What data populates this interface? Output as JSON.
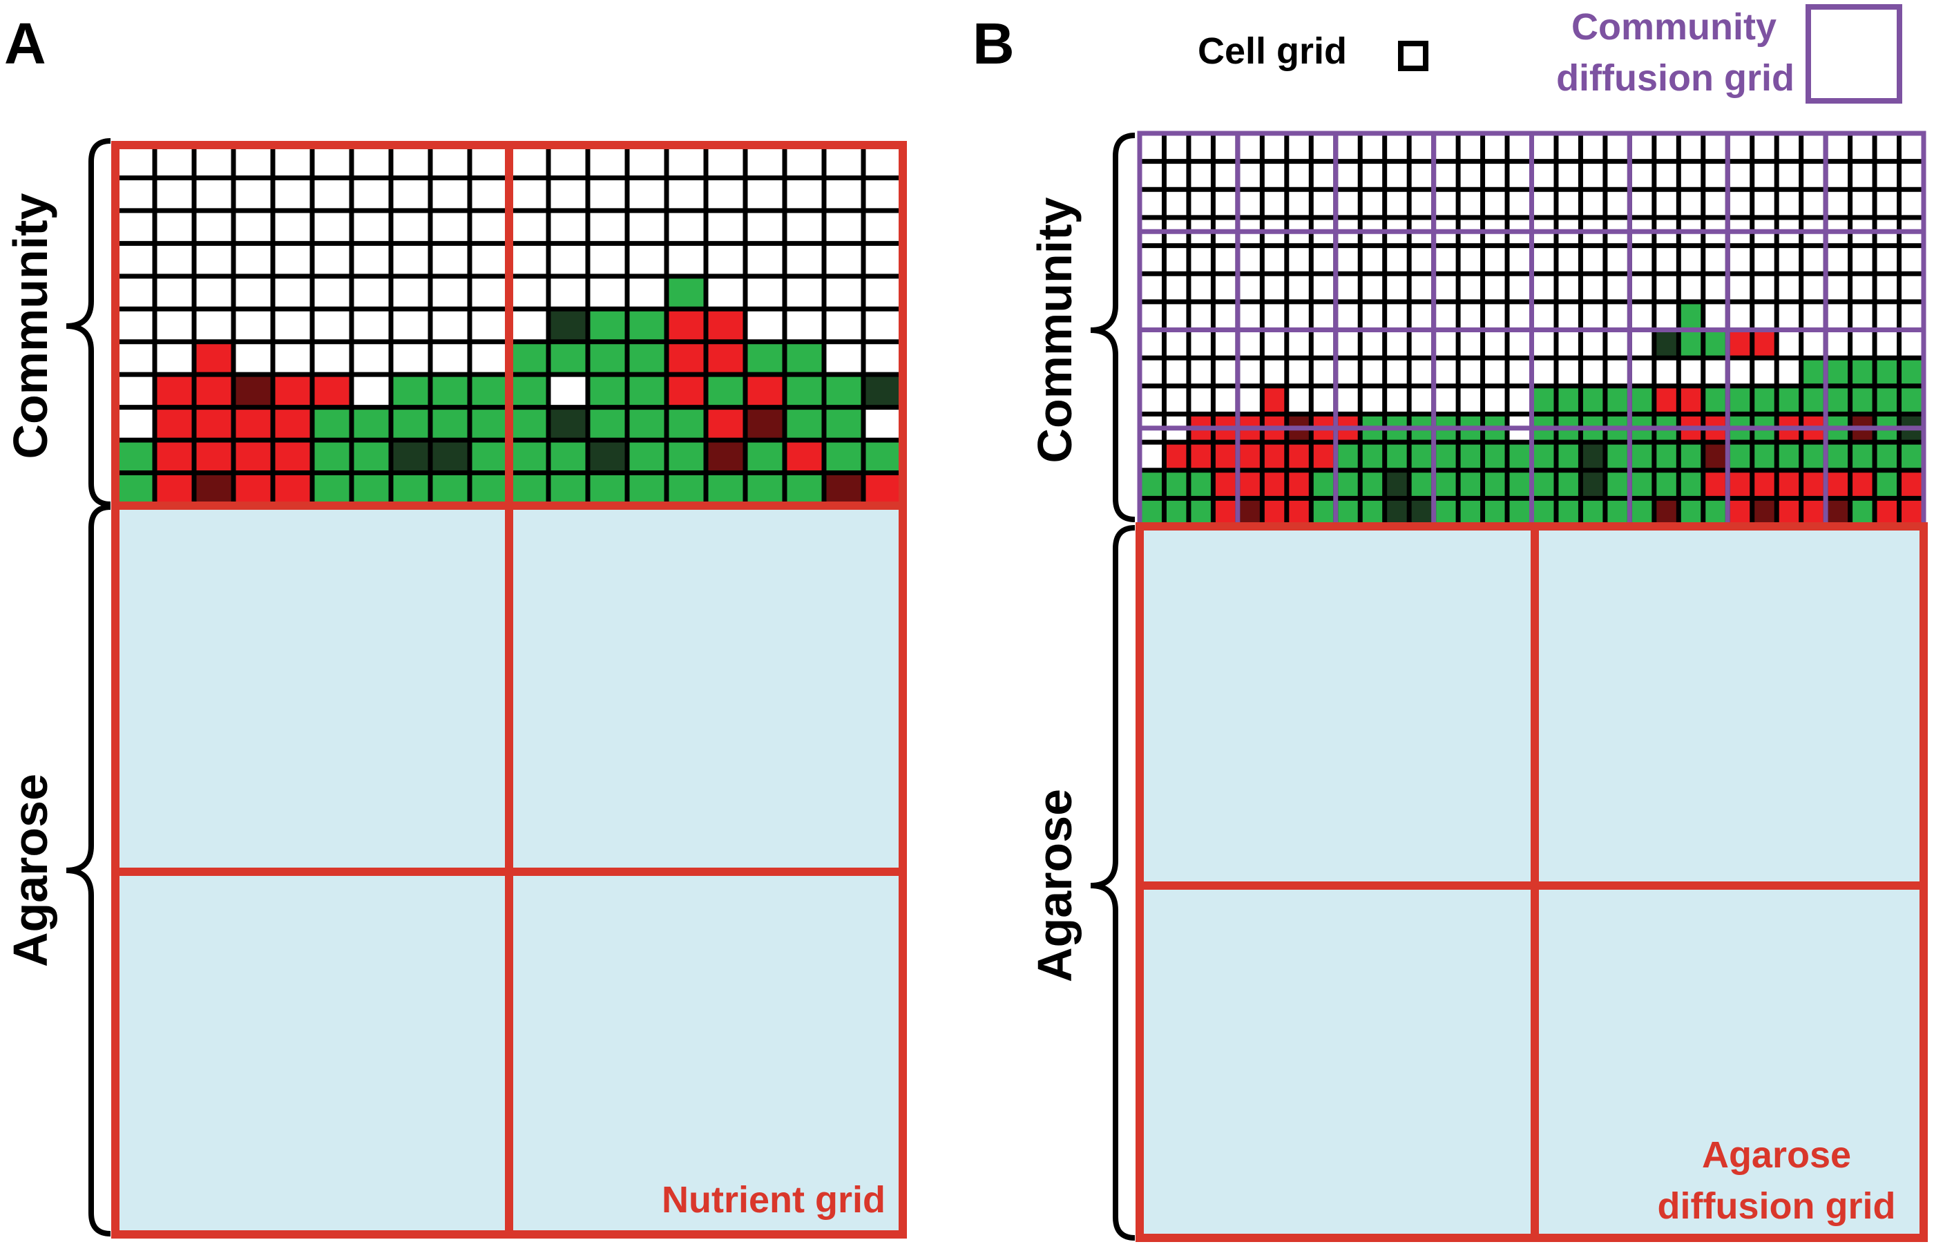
{
  "colors": {
    "cell_grid_line": "#000000",
    "nutrient_grid": "#d9372b",
    "community_diffusion_grid": "#7d52a1",
    "agarose_fill": "#d3ebf2",
    "green_cell": "#2db34b",
    "red_cell": "#ec2024",
    "dark_green_cell": "#1b3a20",
    "dark_red_cell": "#6b1010",
    "empty_cell": "#ffffff"
  },
  "panel_a": {
    "label": "A",
    "community_label": "Community",
    "agarose_label": "Agarose",
    "nutrient_grid_label": "Nutrient grid",
    "cells": [
      "....................",
      "....................",
      "....................",
      "....................",
      "..............G.....",
      "...........DGGRR....",
      "..R.......GGGGRRGG..",
      ".RRXRR.GGGG.GGRGRGGD",
      ".RRRRGGGGGGDGGGRXGG.",
      "GRRRRGGDDGGGDGGXGRGG",
      "GRXRRGGGGGGGGGGGGGXR"
    ]
  },
  "panel_b": {
    "label": "B",
    "community_label": "Community",
    "agarose_label": "Agarose",
    "legend_cell_grid": "Cell grid",
    "legend_community_grid_line1": "Community",
    "legend_community_grid_line2": "diffusion grid",
    "agarose_grid_line1": "Agarose",
    "agarose_grid_line2": "diffusion grid",
    "cells": [
      "................................",
      "................................",
      "................................",
      "................................",
      "................................",
      "................................",
      "......................G.........",
      ".....................DGGRR......",
      "...........................GGGGG",
      ".....R..........GGGGGRRGGGGGGGGG",
      "..RRRRXRRGGGGGG.GGGGGGRRGGRRGXGD",
      ".RRRRRRRGGGGGGGGGGDGGGGXGGGGGGGG",
      "GGGRRRRGGGDGGGGGGGDGGGGRRRRRRRGR",
      "GGGRXRRGGGDDGGGGGGGGGXGGRXRRXGRR"
    ]
  }
}
